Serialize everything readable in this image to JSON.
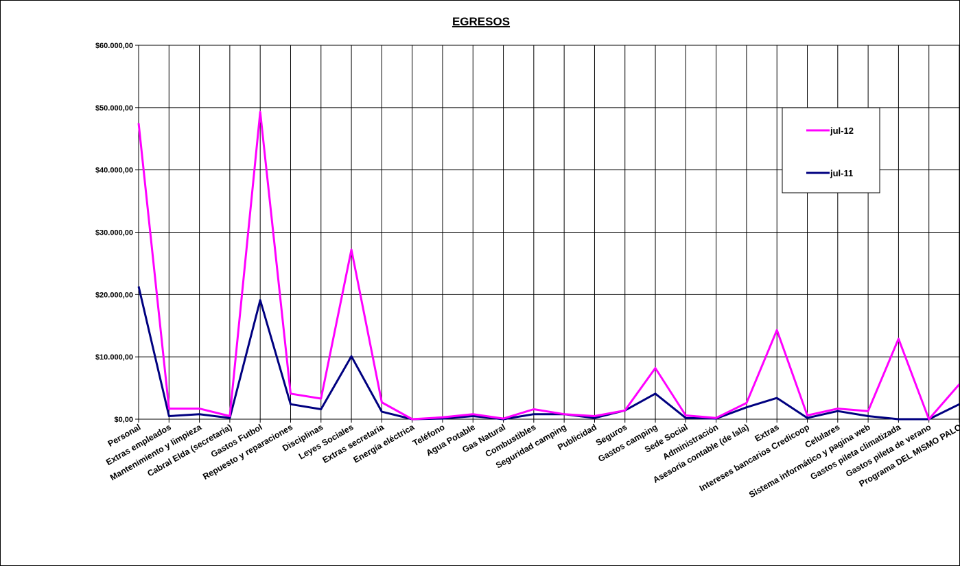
{
  "chart_data": {
    "type": "line",
    "title": "EGRESOS",
    "xlabel": "",
    "ylabel": "",
    "ylim": [
      0,
      60000
    ],
    "yticks": [
      "$0,00",
      "$10.000,00",
      "$20.000,00",
      "$30.000,00",
      "$40.000,00",
      "$50.000,00",
      "$60.000,00"
    ],
    "grid": true,
    "legend_position": "top-right",
    "categories": [
      "Personal",
      "Extras empleados",
      "Mantenimiento y limpieza",
      "Cabral Elda (secretaria)",
      "Gastos Futbol",
      "Repuesto y reparaciones",
      "Disciplinas",
      "Leyes Sociales",
      "Extras secretaria",
      "Energía eléctrica",
      "Teléfono",
      "Agua Potable",
      "Gas Natural",
      "Combustibles",
      "Seguridad camping",
      "Publicidad",
      "Seguros",
      "Gastos camping",
      "Sede Social",
      "Administración",
      "Asesoría contable (de Isla)",
      "Extras",
      "Intereses bancarios Credicoop",
      "Celulares",
      "Sistema informático y pagina web",
      "Gastos pileta climatizada",
      "Gastos pileta de verano",
      "Programa DEL MISMO PALO"
    ],
    "series": [
      {
        "name": "jul-12",
        "color": "#ff00ff",
        "values": [
          47500,
          1700,
          1700,
          500,
          49300,
          4100,
          3300,
          27200,
          2700,
          0,
          300,
          800,
          100,
          1600,
          800,
          500,
          1400,
          8200,
          600,
          200,
          2600,
          14300,
          600,
          1700,
          1300,
          12900,
          0,
          5600
        ]
      },
      {
        "name": "jul-11",
        "color": "#000080",
        "values": [
          21300,
          500,
          800,
          200,
          19100,
          2400,
          1600,
          10100,
          1200,
          0,
          100,
          500,
          0,
          800,
          800,
          200,
          1400,
          4100,
          200,
          100,
          1900,
          3400,
          200,
          1300,
          500,
          0,
          0,
          2400
        ]
      }
    ]
  }
}
